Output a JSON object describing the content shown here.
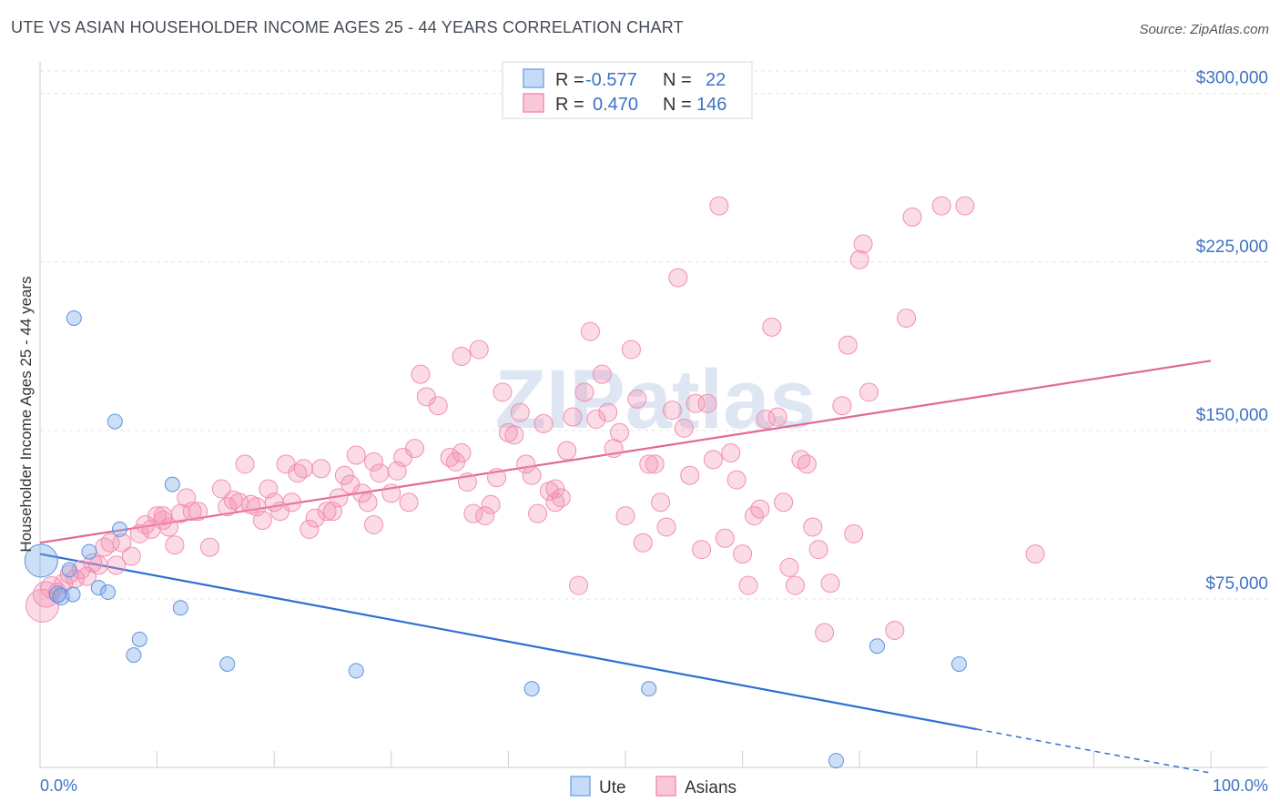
{
  "title": "UTE VS ASIAN HOUSEHOLDER INCOME AGES 25 - 44 YEARS CORRELATION CHART",
  "source": "Source: ZipAtlas.com",
  "watermark": "ZIPatlas",
  "colors": {
    "ute": "#7aaae8",
    "asians": "#f28fb1",
    "ute_line": "#2f6fd0",
    "asians_line": "#e06a96",
    "tick_text": "#3d72c4"
  },
  "legend": {
    "rows": [
      {
        "r_label": "R =",
        "r_value": "-0.577",
        "n_label": "N =",
        "n_value": "22"
      },
      {
        "r_label": "R =",
        "r_value": "0.470",
        "n_label": "N =",
        "n_value": "146"
      }
    ]
  },
  "bottom_legend": {
    "ute": "Ute",
    "asians": "Asians"
  },
  "chart_data": {
    "type": "scatter",
    "title": "UTE VS ASIAN HOUSEHOLDER INCOME AGES 25 - 44 YEARS CORRELATION CHART",
    "xlabel": "",
    "ylabel": "Householder Income Ages 25 - 44 years",
    "xlim": [
      0,
      100
    ],
    "ylim": [
      0,
      310000
    ],
    "x_tick_labels": [
      "0.0%",
      "100.0%"
    ],
    "y_ticks": [
      75000,
      150000,
      225000,
      300000
    ],
    "y_tick_labels": [
      "$75,000",
      "$150,000",
      "$225,000",
      "$300,000"
    ],
    "grid": true,
    "legend_position": "top-center",
    "series": [
      {
        "name": "Ute",
        "color": "#7aaae8",
        "trend": {
          "x": [
            0,
            80
          ],
          "y": [
            95000,
            17000
          ],
          "dashed_extension_to": [
            100,
            -2500
          ]
        },
        "points": [
          [
            0.1,
            92000,
            18
          ],
          [
            1.5,
            77000,
            9
          ],
          [
            1.8,
            76000,
            9
          ],
          [
            2.5,
            88000,
            8
          ],
          [
            2.8,
            77000,
            8
          ],
          [
            2.9,
            200000,
            8
          ],
          [
            4.2,
            96000,
            8
          ],
          [
            5.0,
            80000,
            8
          ],
          [
            5.8,
            78000,
            8
          ],
          [
            6.4,
            154000,
            8
          ],
          [
            6.8,
            106000,
            8
          ],
          [
            8.0,
            50000,
            8
          ],
          [
            8.5,
            57000,
            8
          ],
          [
            11.3,
            126000,
            8
          ],
          [
            12.0,
            71000,
            8
          ],
          [
            16.0,
            46000,
            8
          ],
          [
            27.0,
            43000,
            8
          ],
          [
            42.0,
            35000,
            8
          ],
          [
            52.0,
            35000,
            8
          ],
          [
            68.0,
            3000,
            8
          ],
          [
            71.5,
            54000,
            8
          ],
          [
            78.5,
            46000,
            8
          ]
        ]
      },
      {
        "name": "Asians",
        "color": "#f28fb1",
        "trend": {
          "x": [
            0,
            100
          ],
          "y": [
            100000,
            181000
          ]
        },
        "points": [
          [
            0.2,
            72000,
            18
          ],
          [
            0.5,
            77000,
            14
          ],
          [
            1.0,
            80000,
            12
          ],
          [
            1.5,
            78000,
            10
          ],
          [
            2.0,
            82000,
            10
          ],
          [
            2.5,
            86000,
            10
          ],
          [
            3.0,
            84000,
            10
          ],
          [
            3.5,
            88000,
            10
          ],
          [
            4.0,
            85000,
            10
          ],
          [
            4.5,
            91000,
            10
          ],
          [
            5.0,
            90000,
            10
          ],
          [
            5.5,
            98000,
            10
          ],
          [
            6.0,
            100000,
            10
          ],
          [
            6.5,
            90000,
            10
          ],
          [
            7.0,
            100000,
            10
          ],
          [
            7.8,
            94000,
            10
          ],
          [
            8.5,
            104000,
            10
          ],
          [
            9.0,
            108000,
            10
          ],
          [
            9.5,
            106000,
            10
          ],
          [
            10.0,
            112000,
            10
          ],
          [
            10.5,
            112000,
            10
          ],
          [
            11.0,
            107000,
            10
          ],
          [
            11.5,
            99000,
            10
          ],
          [
            12.0,
            113000,
            10
          ],
          [
            12.5,
            120000,
            10
          ],
          [
            13.0,
            114000,
            10
          ],
          [
            13.5,
            114000,
            10
          ],
          [
            14.5,
            98000,
            10
          ],
          [
            15.5,
            124000,
            10
          ],
          [
            16.0,
            116000,
            10
          ],
          [
            16.5,
            119000,
            10
          ],
          [
            17.0,
            118000,
            10
          ],
          [
            17.5,
            135000,
            10
          ],
          [
            18.0,
            117000,
            10
          ],
          [
            18.5,
            116000,
            10
          ],
          [
            19.0,
            110000,
            10
          ],
          [
            19.5,
            124000,
            10
          ],
          [
            20.0,
            118000,
            10
          ],
          [
            20.5,
            114000,
            10
          ],
          [
            21.0,
            135000,
            10
          ],
          [
            21.5,
            118000,
            10
          ],
          [
            22.0,
            131000,
            10
          ],
          [
            22.5,
            133000,
            10
          ],
          [
            23.0,
            106000,
            10
          ],
          [
            23.5,
            111000,
            10
          ],
          [
            24.0,
            133000,
            10
          ],
          [
            24.5,
            114000,
            10
          ],
          [
            25.0,
            114000,
            10
          ],
          [
            25.5,
            120000,
            10
          ],
          [
            26.0,
            130000,
            10
          ],
          [
            26.5,
            126000,
            10
          ],
          [
            27.0,
            139000,
            10
          ],
          [
            27.5,
            122000,
            10
          ],
          [
            28.0,
            118000,
            10
          ],
          [
            28.5,
            136000,
            10
          ],
          [
            29.0,
            131000,
            10
          ],
          [
            30.0,
            122000,
            10
          ],
          [
            30.5,
            132000,
            10
          ],
          [
            31.0,
            138000,
            10
          ],
          [
            31.5,
            118000,
            10
          ],
          [
            32.0,
            142000,
            10
          ],
          [
            32.5,
            175000,
            10
          ],
          [
            33.0,
            165000,
            10
          ],
          [
            34.0,
            161000,
            10
          ],
          [
            35.0,
            138000,
            10
          ],
          [
            35.5,
            136000,
            10
          ],
          [
            36.0,
            183000,
            10
          ],
          [
            36.5,
            127000,
            10
          ],
          [
            37.0,
            113000,
            10
          ],
          [
            37.5,
            186000,
            10
          ],
          [
            38.0,
            112000,
            10
          ],
          [
            38.5,
            117000,
            10
          ],
          [
            39.0,
            129000,
            10
          ],
          [
            39.5,
            167000,
            10
          ],
          [
            40.0,
            149000,
            10
          ],
          [
            40.5,
            148000,
            10
          ],
          [
            41.0,
            158000,
            10
          ],
          [
            41.5,
            135000,
            10
          ],
          [
            42.0,
            130000,
            10
          ],
          [
            42.5,
            113000,
            10
          ],
          [
            43.0,
            153000,
            10
          ],
          [
            43.5,
            123000,
            10
          ],
          [
            44.0,
            118000,
            10
          ],
          [
            44.5,
            120000,
            10
          ],
          [
            45.0,
            141000,
            10
          ],
          [
            45.5,
            156000,
            10
          ],
          [
            46.0,
            81000,
            10
          ],
          [
            46.5,
            167000,
            10
          ],
          [
            47.0,
            194000,
            10
          ],
          [
            47.5,
            155000,
            10
          ],
          [
            48.0,
            175000,
            10
          ],
          [
            48.5,
            158000,
            10
          ],
          [
            49.0,
            142000,
            10
          ],
          [
            49.5,
            149000,
            10
          ],
          [
            50.0,
            112000,
            10
          ],
          [
            50.5,
            186000,
            10
          ],
          [
            51.0,
            164000,
            10
          ],
          [
            51.5,
            100000,
            10
          ],
          [
            52.0,
            135000,
            10
          ],
          [
            52.5,
            135000,
            10
          ],
          [
            53.0,
            118000,
            10
          ],
          [
            53.5,
            107000,
            10
          ],
          [
            54.0,
            159000,
            10
          ],
          [
            54.5,
            218000,
            10
          ],
          [
            55.0,
            151000,
            10
          ],
          [
            55.5,
            130000,
            10
          ],
          [
            56.0,
            162000,
            10
          ],
          [
            56.5,
            97000,
            10
          ],
          [
            57.0,
            162000,
            10
          ],
          [
            57.5,
            137000,
            10
          ],
          [
            58.0,
            250000,
            10
          ],
          [
            58.5,
            102000,
            10
          ],
          [
            59.0,
            140000,
            10
          ],
          [
            59.5,
            128000,
            10
          ],
          [
            60.0,
            95000,
            10
          ],
          [
            60.5,
            81000,
            10
          ],
          [
            61.0,
            112000,
            10
          ],
          [
            61.5,
            115000,
            10
          ],
          [
            62.0,
            155000,
            10
          ],
          [
            62.5,
            196000,
            10
          ],
          [
            63.0,
            156000,
            10
          ],
          [
            63.5,
            118000,
            10
          ],
          [
            64.0,
            89000,
            10
          ],
          [
            64.5,
            81000,
            10
          ],
          [
            65.0,
            137000,
            10
          ],
          [
            65.5,
            135000,
            10
          ],
          [
            66.0,
            107000,
            10
          ],
          [
            66.5,
            97000,
            10
          ],
          [
            67.0,
            60000,
            10
          ],
          [
            67.5,
            82000,
            10
          ],
          [
            68.5,
            161000,
            10
          ],
          [
            69.0,
            188000,
            10
          ],
          [
            69.5,
            104000,
            10
          ],
          [
            70.0,
            226000,
            10
          ],
          [
            70.3,
            233000,
            10
          ],
          [
            70.8,
            167000,
            10
          ],
          [
            73.0,
            61000,
            10
          ],
          [
            74.0,
            200000,
            10
          ],
          [
            74.5,
            245000,
            10
          ],
          [
            77.0,
            250000,
            10
          ],
          [
            79.0,
            250000,
            10
          ],
          [
            85.0,
            95000,
            10
          ],
          [
            10.5,
            110000,
            10
          ],
          [
            28.5,
            108000,
            10
          ],
          [
            44.0,
            124000,
            10
          ],
          [
            36.0,
            140000,
            10
          ]
        ]
      }
    ]
  }
}
